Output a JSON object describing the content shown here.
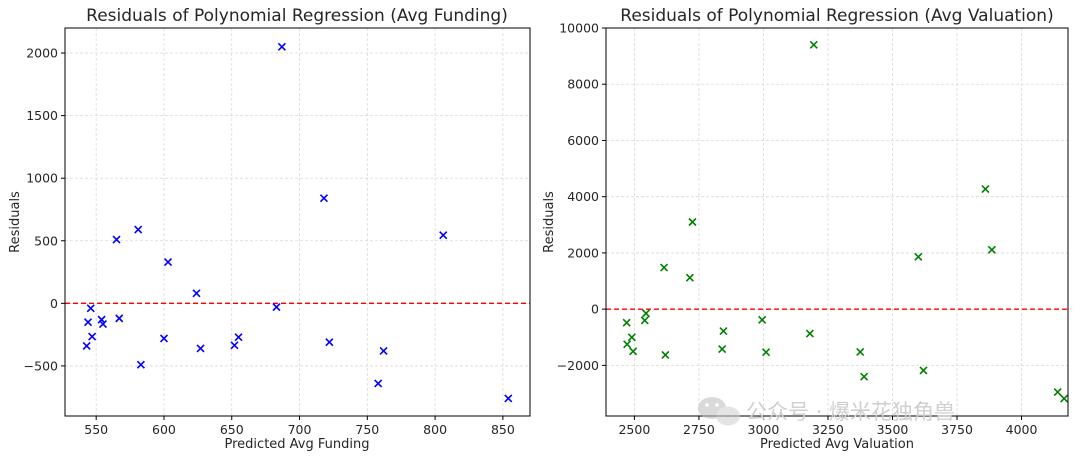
{
  "watermark": {
    "text": "公众号 · 爆米花独角兽",
    "icon": "wechat-icon"
  },
  "chart_data": [
    {
      "type": "scatter",
      "title": "Residuals of Polynomial Regression (Avg Funding)",
      "xlabel": "Predicted Avg Funding",
      "ylabel": "Residuals",
      "xlim": [
        527,
        870
      ],
      "ylim": [
        -900,
        2200
      ],
      "xticks": [
        550,
        600,
        650,
        700,
        750,
        800,
        850
      ],
      "yticks": [
        -500,
        0,
        500,
        1000,
        1500,
        2000
      ],
      "xtick_labels": [
        "550",
        "600",
        "650",
        "700",
        "750",
        "800",
        "850"
      ],
      "ytick_labels": [
        "−500",
        "0",
        "500",
        "1000",
        "1500",
        "2000"
      ],
      "grid": true,
      "marker": "x",
      "marker_color": "#0000ff",
      "reference_line": {
        "y": 0,
        "style": "dashed",
        "color": "#ff0000"
      },
      "points": [
        {
          "x": 543,
          "y": -340
        },
        {
          "x": 544,
          "y": -150
        },
        {
          "x": 546,
          "y": -40
        },
        {
          "x": 547,
          "y": -265
        },
        {
          "x": 554,
          "y": -130
        },
        {
          "x": 555,
          "y": -165
        },
        {
          "x": 565,
          "y": 510
        },
        {
          "x": 567,
          "y": -120
        },
        {
          "x": 581,
          "y": 590
        },
        {
          "x": 583,
          "y": -490
        },
        {
          "x": 600,
          "y": -280
        },
        {
          "x": 603,
          "y": 330
        },
        {
          "x": 624,
          "y": 80
        },
        {
          "x": 627,
          "y": -360
        },
        {
          "x": 652,
          "y": -335
        },
        {
          "x": 655,
          "y": -270
        },
        {
          "x": 683,
          "y": -30
        },
        {
          "x": 687,
          "y": 2050
        },
        {
          "x": 718,
          "y": 840
        },
        {
          "x": 722,
          "y": -310
        },
        {
          "x": 758,
          "y": -640
        },
        {
          "x": 762,
          "y": -380
        },
        {
          "x": 806,
          "y": 545
        },
        {
          "x": 854,
          "y": -760
        }
      ]
    },
    {
      "type": "scatter",
      "title": "Residuals of Polynomial Regression (Avg Valuation)",
      "xlabel": "Predicted Avg Valuation",
      "ylabel": "Residuals",
      "xlim": [
        2390,
        4180
      ],
      "ylim": [
        -3800,
        10000
      ],
      "xticks": [
        2500,
        2750,
        3000,
        3250,
        3500,
        3750,
        4000
      ],
      "yticks": [
        -2000,
        0,
        2000,
        4000,
        6000,
        8000,
        10000
      ],
      "xtick_labels": [
        "2500",
        "2750",
        "3000",
        "3250",
        "3500",
        "3750",
        "4000"
      ],
      "ytick_labels": [
        "−2000",
        "0",
        "2000",
        "4000",
        "6000",
        "8000",
        "10000"
      ],
      "grid": true,
      "marker": "x",
      "marker_color": "#008000",
      "reference_line": {
        "y": 0,
        "style": "dashed",
        "color": "#ff0000"
      },
      "points": [
        {
          "x": 2470,
          "y": -480
        },
        {
          "x": 2472,
          "y": -1250
        },
        {
          "x": 2490,
          "y": -1000
        },
        {
          "x": 2495,
          "y": -1500
        },
        {
          "x": 2540,
          "y": -400
        },
        {
          "x": 2545,
          "y": -150
        },
        {
          "x": 2615,
          "y": 1480
        },
        {
          "x": 2620,
          "y": -1630
        },
        {
          "x": 2715,
          "y": 1120
        },
        {
          "x": 2725,
          "y": 3100
        },
        {
          "x": 2840,
          "y": -1420
        },
        {
          "x": 2845,
          "y": -780
        },
        {
          "x": 2995,
          "y": -380
        },
        {
          "x": 3010,
          "y": -1530
        },
        {
          "x": 3180,
          "y": -870
        },
        {
          "x": 3195,
          "y": 9400
        },
        {
          "x": 3375,
          "y": -1520
        },
        {
          "x": 3390,
          "y": -2400
        },
        {
          "x": 3600,
          "y": 1860
        },
        {
          "x": 3620,
          "y": -2180
        },
        {
          "x": 3860,
          "y": 4270
        },
        {
          "x": 3885,
          "y": 2110
        },
        {
          "x": 4140,
          "y": -2950
        },
        {
          "x": 4165,
          "y": -3180
        }
      ]
    }
  ]
}
